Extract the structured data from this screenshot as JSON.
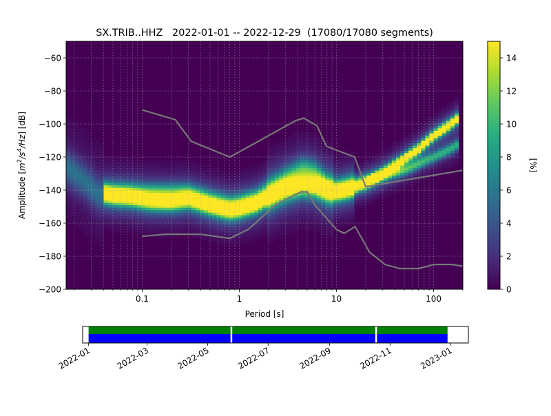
{
  "chart_data": [
    {
      "type": "heatmap",
      "title": "SX.TRIB..HHZ   2022-01-01 -- 2022-12-29  (17080/17080 segments)",
      "xlabel": "Period [s]",
      "ylabel_parts": [
        "Amplitude [",
        "m",
        "2",
        "/",
        "s",
        "4",
        "/",
        "Hz",
        "] [dB]"
      ],
      "xscale": "log",
      "xlim": [
        0.0165,
        200
      ],
      "ylim": [
        -200,
        -50
      ],
      "x_ticks": [
        {
          "v": 0.1,
          "label": "0.1"
        },
        {
          "v": 1,
          "label": "1"
        },
        {
          "v": 10,
          "label": "10"
        },
        {
          "v": 100,
          "label": "100"
        }
      ],
      "y_ticks": [
        {
          "v": -60,
          "label": "−60"
        },
        {
          "v": -80,
          "label": "−80"
        },
        {
          "v": -100,
          "label": "−100"
        },
        {
          "v": -120,
          "label": "−120"
        },
        {
          "v": -140,
          "label": "−140"
        },
        {
          "v": -160,
          "label": "−160"
        },
        {
          "v": -180,
          "label": "−180"
        },
        {
          "v": -200,
          "label": "−200"
        }
      ],
      "grid": true,
      "colorbar": {
        "label": "[%]",
        "colormap": "viridis",
        "range": [
          0,
          15
        ],
        "ticks": [
          {
            "v": 0,
            "label": "0"
          },
          {
            "v": 2,
            "label": "2"
          },
          {
            "v": 4,
            "label": "4"
          },
          {
            "v": 6,
            "label": "6"
          },
          {
            "v": 8,
            "label": "8"
          },
          {
            "v": 10,
            "label": "10"
          },
          {
            "v": 12,
            "label": "12"
          },
          {
            "v": 14,
            "label": "14"
          }
        ]
      },
      "density_ridges": [
        {
          "name": "main",
          "points": [
            [
              0.0165,
              -126
            ],
            [
              0.025,
              -134
            ],
            [
              0.035,
              -142
            ],
            [
              0.05,
              -144
            ],
            [
              0.08,
              -145
            ],
            [
              0.12,
              -147
            ],
            [
              0.2,
              -147.5
            ],
            [
              0.3,
              -146
            ],
            [
              0.5,
              -150
            ],
            [
              0.8,
              -153
            ],
            [
              1.0,
              -152
            ],
            [
              1.5,
              -149
            ],
            [
              2.0,
              -145
            ],
            [
              3.0,
              -140
            ],
            [
              4.5,
              -137
            ],
            [
              6.0,
              -138
            ],
            [
              8.0,
              -141
            ],
            [
              10,
              -142
            ],
            [
              14,
              -140
            ],
            [
              20,
              -136
            ],
            [
              30,
              -130
            ],
            [
              50,
              -121
            ],
            [
              70,
              -115
            ],
            [
              100,
              -107
            ],
            [
              150,
              -100
            ],
            [
              180,
              -96
            ]
          ],
          "weight": 1.0
        },
        {
          "name": "upper",
          "points": [
            [
              0.04,
              -140
            ],
            [
              0.1,
              -141
            ],
            [
              0.2,
              -141
            ],
            [
              0.3,
              -141
            ],
            [
              0.5,
              -145
            ],
            [
              0.8,
              -148
            ],
            [
              1.0,
              -147
            ],
            [
              1.5,
              -144
            ],
            [
              2.0,
              -139
            ],
            [
              3.0,
              -133
            ],
            [
              4.5,
              -127
            ],
            [
              6.0,
              -129
            ],
            [
              8.0,
              -136
            ],
            [
              10,
              -138
            ],
            [
              15,
              -135
            ],
            [
              20,
              -134
            ],
            [
              30,
              -131
            ],
            [
              50,
              -128
            ],
            [
              70,
              -124
            ],
            [
              100,
              -120
            ],
            [
              150,
              -115
            ],
            [
              180,
              -112
            ]
          ],
          "weight": 0.5
        }
      ],
      "noise_models": [
        {
          "name": "NHNM",
          "points": [
            [
              0.1,
              -91.5
            ],
            [
              0.22,
              -97.4
            ],
            [
              0.32,
              -110.5
            ],
            [
              0.8,
              -120
            ],
            [
              3.8,
              -98
            ],
            [
              4.6,
              -96.5
            ],
            [
              6.3,
              -101
            ],
            [
              7.9,
              -113.5
            ],
            [
              15.4,
              -120
            ],
            [
              20,
              -138
            ],
            [
              200,
              -128
            ]
          ]
        },
        {
          "name": "NLNM",
          "points": [
            [
              0.1,
              -168
            ],
            [
              0.17,
              -166.7
            ],
            [
              0.4,
              -166.7
            ],
            [
              0.8,
              -169.2
            ],
            [
              1.24,
              -163.7
            ],
            [
              2.4,
              -148.6
            ],
            [
              4.3,
              -141.1
            ],
            [
              5.0,
              -141.1
            ],
            [
              6.0,
              -149
            ],
            [
              10,
              -163.8
            ],
            [
              12,
              -166.2
            ],
            [
              15.6,
              -162.1
            ],
            [
              21.9,
              -177.5
            ],
            [
              31.6,
              -185
            ],
            [
              45,
              -187.5
            ],
            [
              70,
              -187.5
            ],
            [
              101,
              -185
            ],
            [
              154,
              -185
            ],
            [
              200,
              -186
            ]
          ]
        }
      ],
      "line_color": "#777777"
    },
    {
      "type": "timeline",
      "xlim": [
        "2021-12-26",
        "2023-01-19"
      ],
      "ticks": [
        {
          "date": "2022-01-01",
          "label": "2022-01"
        },
        {
          "date": "2022-03-01",
          "label": "2022-03"
        },
        {
          "date": "2022-05-01",
          "label": "2022-05"
        },
        {
          "date": "2022-07-01",
          "label": "2022-07"
        },
        {
          "date": "2022-09-01",
          "label": "2022-09"
        },
        {
          "date": "2022-11-01",
          "label": "2022-11"
        },
        {
          "date": "2023-01-01",
          "label": "2023-01"
        }
      ],
      "coverage_span": [
        "2022-01-01",
        "2022-12-29"
      ],
      "gaps": [
        "2022-05-25",
        "2022-10-18"
      ],
      "colors": {
        "upper": "#008000",
        "lower": "#0000ff",
        "gap": "#ffffff"
      }
    }
  ]
}
